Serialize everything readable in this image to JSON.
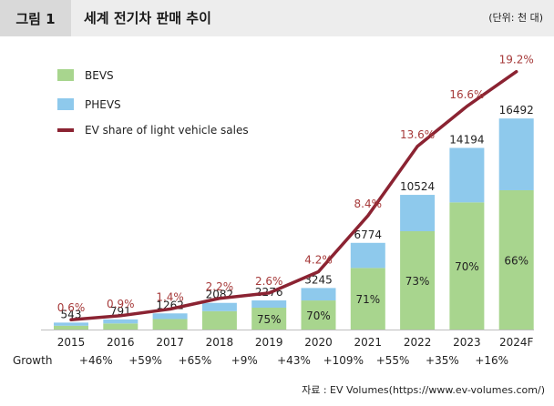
{
  "header": {
    "figure_label": "그림 1",
    "title": "세계 전기차 판매 추이",
    "unit": "(단위: 천 대)"
  },
  "source": "자료 : EV Volumes(https://www.ev-volumes.com/)",
  "colors": {
    "bevs": "#a8d58e",
    "phevs": "#8ec9ec",
    "share_line": "#8b2332",
    "share_label": "#a63a3a"
  },
  "chart_data": {
    "type": "bar",
    "stacked": true,
    "title": "세계 전기차 판매 추이",
    "unit": "(단위: 천 대)",
    "categories": [
      "2015",
      "2016",
      "2017",
      "2018",
      "2019",
      "2020",
      "2021",
      "2022",
      "2023",
      "2024F"
    ],
    "totals": [
      543,
      791,
      1262,
      2082,
      2276,
      3245,
      6774,
      10524,
      14194,
      16492
    ],
    "bevs_share_labels": [
      "",
      "",
      "",
      "",
      "75%",
      "70%",
      "71%",
      "73%",
      "70%",
      "66%"
    ],
    "bevs_share_pct": [
      55,
      60,
      65,
      69,
      75,
      70,
      71,
      73,
      70,
      66
    ],
    "series": [
      {
        "name": "BEVS",
        "legend": "BEVS",
        "values": [
          299,
          475,
          820,
          1437,
          1707,
          2272,
          4810,
          7683,
          9936,
          10885
        ]
      },
      {
        "name": "PHEVS",
        "legend": "PHEVS",
        "values": [
          244,
          316,
          442,
          645,
          569,
          973,
          1964,
          2841,
          4258,
          5607
        ]
      }
    ],
    "line": {
      "name": "EV share of light vehicle sales",
      "values": [
        0.6,
        0.9,
        1.4,
        2.2,
        2.6,
        4.2,
        8.4,
        13.6,
        16.6,
        19.2
      ],
      "labels": [
        "0.6%",
        "0.9%",
        "1.4%",
        "2.2%",
        "2.6%",
        "4.2%",
        "8.4%",
        "13.6%",
        "16.6%",
        "19.2%"
      ]
    },
    "growth": {
      "label": "Growth",
      "values": [
        "",
        "+46%",
        "+59%",
        "+65%",
        "+9%",
        "+43%",
        "+109%",
        "+55%",
        "+35%",
        "+16%"
      ]
    },
    "ylim": [
      0,
      17500
    ],
    "line_ylim": [
      0,
      20
    ],
    "legend": [
      "BEVS",
      "PHEVS",
      "EV share of light vehicle sales"
    ],
    "legend_position": "top-left"
  }
}
